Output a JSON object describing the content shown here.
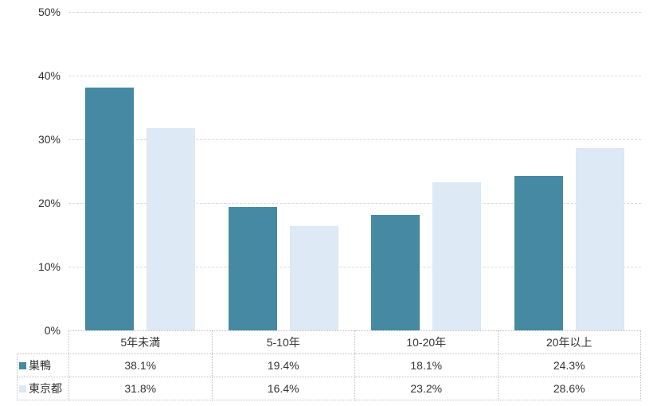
{
  "chart_data": {
    "type": "bar",
    "title": "",
    "categories": [
      "5年未満",
      "5-10年",
      "10-20年",
      "20年以上"
    ],
    "series": [
      {
        "name": "巣鴨",
        "values": [
          38.1,
          19.4,
          18.1,
          24.3
        ],
        "color": "#4589a2"
      },
      {
        "name": "東京都",
        "values": [
          31.8,
          16.4,
          23.2,
          28.6
        ],
        "color": "#dde9f4"
      }
    ],
    "ylim": [
      0,
      50
    ],
    "ytick_values": [
      0,
      10,
      20,
      30,
      40,
      50
    ],
    "ytick_labels": [
      "0%",
      "10%",
      "20%",
      "30%",
      "40%",
      "50%"
    ],
    "grid": true,
    "legend_position": "table-left"
  },
  "table": {
    "column_headers": [
      "5年未満",
      "5-10年",
      "10-20年",
      "20年以上"
    ],
    "row_labels": [
      "巣鴨",
      "東京都"
    ],
    "rows": [
      [
        "38.1%",
        "19.4%",
        "18.1%",
        "24.3%"
      ],
      [
        "31.8%",
        "16.4%",
        "23.2%",
        "28.6%"
      ]
    ]
  },
  "colors": {
    "series1": "#4589a2",
    "series2": "#dde9f4",
    "gridline": "#d9d9d9",
    "table_border": "#bfbfbf",
    "text": "#333333",
    "background": "#ffffff"
  }
}
